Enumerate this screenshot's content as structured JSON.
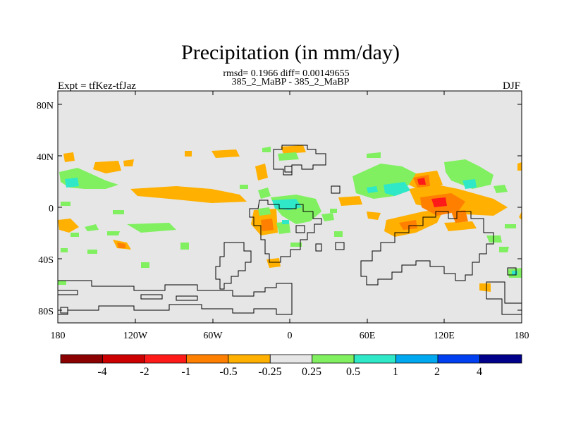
{
  "title": "Precipitation (in mm/day)",
  "stats": "rmsd= 0.1966  diff= 0.00149655",
  "experiment_label": "Expt = tfKez-tfJaz",
  "comparison": "385_2_MaBP - 385_2_MaBP",
  "season": "DJF",
  "axes": {
    "lat_ticks": [
      "80N",
      "40N",
      "0",
      "40S",
      "80S"
    ],
    "lon_ticks": [
      "180",
      "120W",
      "60W",
      "0",
      "60E",
      "120E",
      "180"
    ]
  },
  "colorbar": {
    "labels": [
      "-4",
      "-2",
      "-1",
      "-0.5",
      "-0.25",
      "0.25",
      "0.5",
      "1",
      "2",
      "4"
    ],
    "colors": [
      "#8b0000",
      "#cc0000",
      "#ff1a1a",
      "#ff7f00",
      "#ffb000",
      "#e6e6e6",
      "#80f060",
      "#2ee8c8",
      "#00a8f0",
      "#0040f0",
      "#00008b"
    ]
  },
  "palette": {
    "background": "#e6e6e6",
    "orange": "#ffb000",
    "dark_orange": "#ff7f00",
    "red": "#ff1a1a",
    "green": "#80f060",
    "cyan": "#2ee8c8"
  }
}
